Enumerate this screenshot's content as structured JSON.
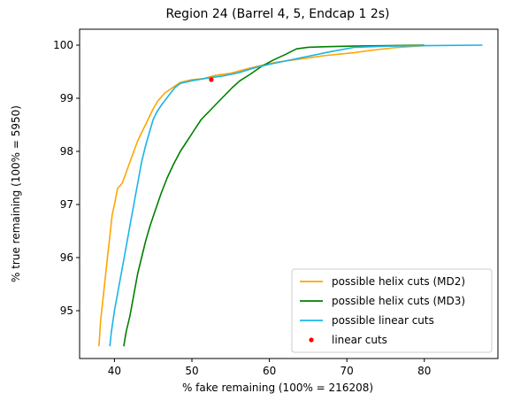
{
  "chart_data": {
    "type": "line",
    "title": "Region 24 (Barrel 4, 5, Endcap 1 2s)",
    "xlabel": "% fake remaining (100% = 216208)",
    "ylabel": "% true remaining (100% = 5950)",
    "xlim": [
      35.5,
      89.5
    ],
    "ylim": [
      94.1,
      100.3
    ],
    "xticks": [
      40,
      50,
      60,
      70,
      80
    ],
    "yticks": [
      95,
      96,
      97,
      98,
      99,
      100
    ],
    "grid": false,
    "legend_position": "lower-right",
    "series": [
      {
        "name": "possible helix cuts (MD2)",
        "kind": "line",
        "color": "#ffa500",
        "points": [
          [
            38.0,
            94.33
          ],
          [
            38.2,
            94.8
          ],
          [
            38.5,
            95.2
          ],
          [
            38.8,
            95.6
          ],
          [
            39.1,
            96.0
          ],
          [
            39.4,
            96.4
          ],
          [
            39.7,
            96.8
          ],
          [
            40.0,
            97.0
          ],
          [
            40.4,
            97.3
          ],
          [
            41.0,
            97.4
          ],
          [
            41.5,
            97.6
          ],
          [
            42.0,
            97.8
          ],
          [
            42.5,
            98.0
          ],
          [
            43.0,
            98.2
          ],
          [
            43.5,
            98.35
          ],
          [
            44.0,
            98.5
          ],
          [
            44.5,
            98.65
          ],
          [
            45.0,
            98.8
          ],
          [
            45.6,
            98.95
          ],
          [
            46.5,
            99.1
          ],
          [
            47.5,
            99.2
          ],
          [
            48.5,
            99.3
          ],
          [
            50.0,
            99.35
          ],
          [
            51.5,
            99.37
          ],
          [
            53.0,
            99.43
          ],
          [
            55.0,
            99.47
          ],
          [
            57.0,
            99.55
          ],
          [
            59.0,
            99.62
          ],
          [
            61.0,
            99.68
          ],
          [
            63.0,
            99.72
          ],
          [
            65.0,
            99.76
          ],
          [
            67.0,
            99.8
          ],
          [
            69.0,
            99.83
          ],
          [
            71.0,
            99.86
          ],
          [
            73.0,
            99.9
          ],
          [
            76.0,
            99.95
          ],
          [
            80.0,
            99.99
          ]
        ]
      },
      {
        "name": "possible helix cuts (MD3)",
        "kind": "line",
        "color": "#008000",
        "points": [
          [
            41.2,
            94.33
          ],
          [
            41.5,
            94.6
          ],
          [
            42.0,
            94.9
          ],
          [
            42.5,
            95.3
          ],
          [
            43.0,
            95.7
          ],
          [
            43.5,
            96.0
          ],
          [
            44.0,
            96.3
          ],
          [
            44.6,
            96.6
          ],
          [
            45.3,
            96.9
          ],
          [
            46.0,
            97.2
          ],
          [
            46.8,
            97.5
          ],
          [
            47.6,
            97.75
          ],
          [
            48.5,
            98.0
          ],
          [
            49.4,
            98.2
          ],
          [
            50.3,
            98.4
          ],
          [
            51.2,
            98.6
          ],
          [
            52.2,
            98.75
          ],
          [
            53.2,
            98.9
          ],
          [
            54.2,
            99.05
          ],
          [
            55.2,
            99.2
          ],
          [
            56.2,
            99.33
          ],
          [
            57.5,
            99.45
          ],
          [
            59.0,
            99.6
          ],
          [
            60.5,
            99.72
          ],
          [
            62.0,
            99.82
          ],
          [
            63.5,
            99.93
          ],
          [
            65.0,
            99.96
          ],
          [
            67.0,
            99.97
          ],
          [
            70.0,
            99.98
          ],
          [
            75.0,
            99.99
          ],
          [
            80.0,
            100.0
          ]
        ]
      },
      {
        "name": "possible linear cuts",
        "kind": "line",
        "color": "#1ab4e8",
        "points": [
          [
            39.4,
            94.33
          ],
          [
            39.6,
            94.6
          ],
          [
            40.0,
            95.0
          ],
          [
            40.5,
            95.4
          ],
          [
            41.0,
            95.8
          ],
          [
            41.5,
            96.2
          ],
          [
            42.0,
            96.6
          ],
          [
            42.5,
            97.0
          ],
          [
            43.0,
            97.4
          ],
          [
            43.5,
            97.8
          ],
          [
            44.0,
            98.1
          ],
          [
            44.5,
            98.35
          ],
          [
            45.0,
            98.6
          ],
          [
            45.5,
            98.75
          ],
          [
            46.2,
            98.9
          ],
          [
            47.0,
            99.05
          ],
          [
            47.8,
            99.2
          ],
          [
            48.5,
            99.28
          ],
          [
            50.0,
            99.33
          ],
          [
            52.0,
            99.38
          ],
          [
            54.0,
            99.42
          ],
          [
            56.0,
            99.48
          ],
          [
            58.0,
            99.57
          ],
          [
            60.0,
            99.64
          ],
          [
            62.0,
            99.7
          ],
          [
            64.0,
            99.76
          ],
          [
            66.0,
            99.82
          ],
          [
            68.0,
            99.88
          ],
          [
            71.0,
            99.96
          ],
          [
            75.0,
            99.98
          ],
          [
            80.0,
            99.99
          ],
          [
            87.5,
            100.0
          ]
        ]
      },
      {
        "name": "linear cuts",
        "kind": "scatter",
        "color": "#ff0000",
        "points": [
          [
            52.5,
            99.35
          ]
        ]
      }
    ]
  }
}
